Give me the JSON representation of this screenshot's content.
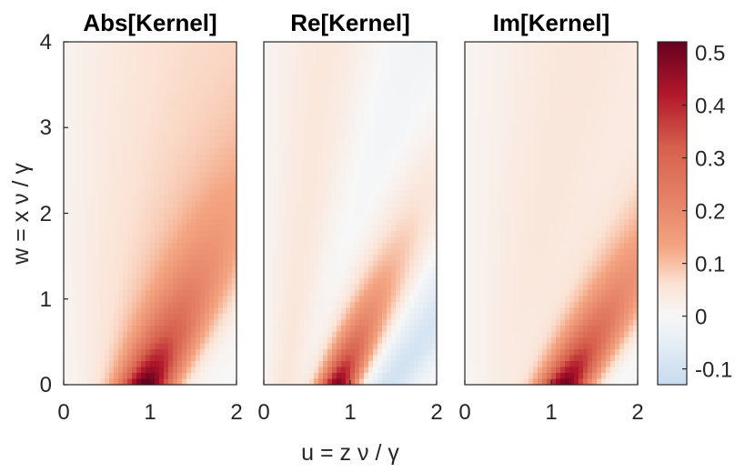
{
  "chart_data": [
    {
      "type": "heatmap",
      "title": "Abs[Kernel]",
      "variant": "abs",
      "xlim": [
        0,
        2
      ],
      "ylim": [
        0,
        4
      ],
      "x_ticks": [
        "0",
        "1",
        "2"
      ],
      "y_ticks": [
        "0",
        "1",
        "2",
        "3",
        "4"
      ],
      "xlabel": "",
      "ylabel": "w = x ν / γ"
    },
    {
      "type": "heatmap",
      "title": "Re[Kernel]",
      "variant": "re",
      "xlim": [
        0,
        2
      ],
      "ylim": [
        0,
        4
      ],
      "x_ticks": [
        "0",
        "1",
        "2"
      ],
      "xlabel": "u = z ν / γ",
      "ylabel": ""
    },
    {
      "type": "heatmap",
      "title": "Im[Kernel]",
      "variant": "im",
      "xlim": [
        0,
        2
      ],
      "ylim": [
        0,
        4
      ],
      "x_ticks": [
        "0",
        "1",
        "2"
      ],
      "xlabel": "",
      "ylabel": ""
    }
  ],
  "colorbar": {
    "clim": [
      -0.13,
      0.52
    ],
    "ticks": [
      "-0.1",
      "0",
      "0.1",
      "0.2",
      "0.3",
      "0.4",
      "0.5"
    ],
    "tick_values": [
      -0.1,
      0,
      0.1,
      0.2,
      0.3,
      0.4,
      0.5
    ],
    "colormap": [
      [
        -0.13,
        "#c6dbef"
      ],
      [
        -0.05,
        "#e6eef5"
      ],
      [
        0.0,
        "#f7f7f7"
      ],
      [
        0.06,
        "#fbe3d5"
      ],
      [
        0.13,
        "#f4a582"
      ],
      [
        0.22,
        "#e58267"
      ],
      [
        0.32,
        "#d6604d"
      ],
      [
        0.42,
        "#b2182b"
      ],
      [
        0.52,
        "#67001f"
      ]
    ]
  }
}
